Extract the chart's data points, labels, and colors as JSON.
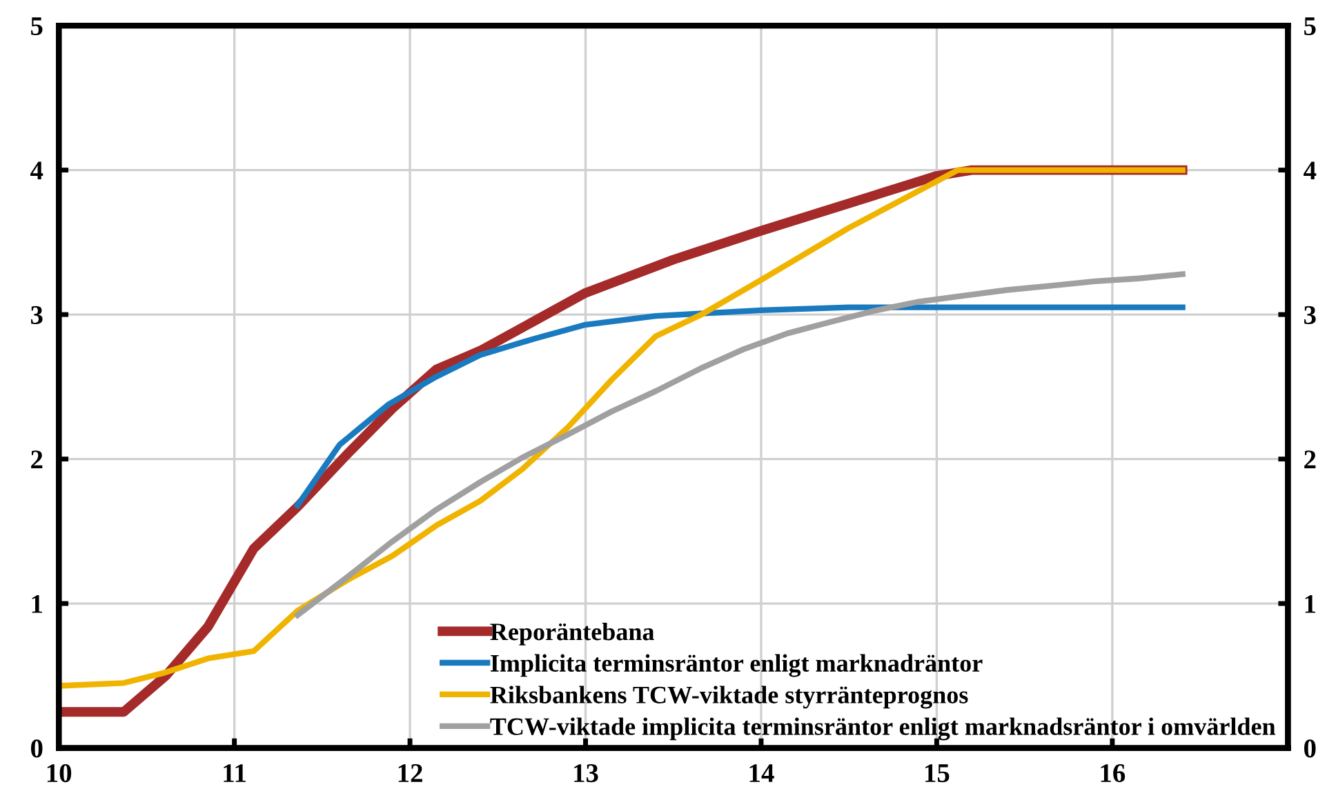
{
  "chart_data": {
    "type": "line",
    "xlim": [
      10,
      17
    ],
    "xticks": [
      10,
      11,
      12,
      13,
      14,
      15,
      16,
      {
        "value": 17,
        "label": null
      }
    ],
    "ylim": [
      0,
      5
    ],
    "yticks": [
      0,
      1,
      2,
      3,
      4,
      5
    ],
    "y2lim": [
      0,
      5
    ],
    "y2ticks": [
      0,
      1,
      2,
      3,
      4,
      5
    ],
    "grid": true,
    "legend": "bottom",
    "line_style": "solid",
    "marker": "none",
    "series": [
      {
        "name": "Reporäntebana",
        "color": "#a52a2a",
        "x": [
          10,
          10.37,
          10.61,
          10.85,
          11.11,
          11.36,
          11.64,
          11.9,
          12.15,
          12.4,
          12.7,
          13.0,
          13.5,
          14.0,
          14.5,
          15.0,
          15.2,
          16.4
        ],
        "values": [
          0.25,
          0.25,
          0.5,
          0.84,
          1.38,
          1.67,
          2.03,
          2.35,
          2.62,
          2.75,
          2.95,
          3.15,
          3.38,
          3.58,
          3.77,
          3.96,
          4.0,
          4.0
        ]
      },
      {
        "name": "Implicita terminsräntor enligt marknadräntor",
        "color": "#1a7abf",
        "x": [
          11.36,
          11.6,
          11.88,
          12.15,
          12.4,
          12.7,
          13.0,
          13.4,
          14.0,
          14.5,
          16.4
        ],
        "values": [
          1.68,
          2.1,
          2.38,
          2.57,
          2.72,
          2.83,
          2.93,
          2.99,
          3.03,
          3.05,
          3.05
        ]
      },
      {
        "name": "Riksbankens TCW-viktade styrränteprognos",
        "color": "#f0b400",
        "x": [
          10,
          10.37,
          10.6,
          10.85,
          11.11,
          11.36,
          11.64,
          11.9,
          12.15,
          12.4,
          12.64,
          12.9,
          13.15,
          13.4,
          13.66,
          14.0,
          14.5,
          15.12,
          16.4
        ],
        "values": [
          0.43,
          0.45,
          0.52,
          0.62,
          0.67,
          0.95,
          1.16,
          1.33,
          1.54,
          1.71,
          1.93,
          2.22,
          2.55,
          2.85,
          3.0,
          3.24,
          3.6,
          4.0,
          4.0
        ]
      },
      {
        "name": "TCW-viktade implicita terminsräntor enligt marknadsräntor i omvärlden",
        "color": "#a0a0a0",
        "x": [
          11.36,
          11.64,
          11.9,
          12.15,
          12.4,
          12.64,
          12.9,
          13.15,
          13.4,
          13.66,
          13.9,
          14.15,
          14.4,
          14.66,
          14.9,
          15.15,
          15.4,
          15.66,
          15.9,
          16.15,
          16.4
        ],
        "values": [
          0.92,
          1.18,
          1.43,
          1.65,
          1.84,
          2.01,
          2.17,
          2.33,
          2.47,
          2.63,
          2.76,
          2.87,
          2.95,
          3.03,
          3.09,
          3.13,
          3.17,
          3.2,
          3.23,
          3.25,
          3.28
        ]
      }
    ]
  }
}
